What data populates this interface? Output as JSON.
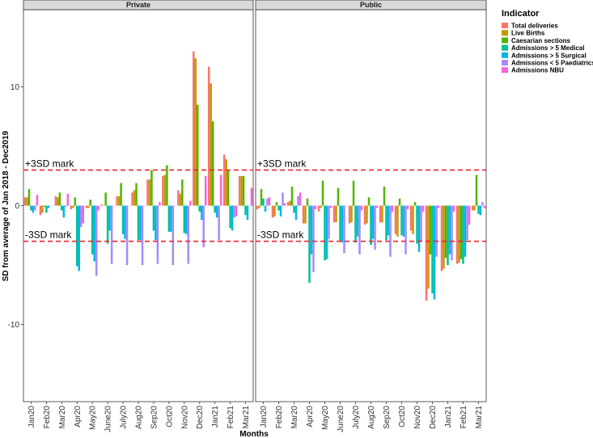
{
  "chart_data": {
    "type": "bar",
    "ylabel": "SD from average of Jan 2018 - Dec2019",
    "xlabel": "Months",
    "ylim": [
      -16.5,
      16.5
    ],
    "yticks": [
      -10,
      0,
      10
    ],
    "x_tick_labels": [
      "Jan20",
      "Feb20",
      "Mar20",
      "Apr20",
      "May20",
      "June20",
      "July20",
      "Aug20",
      "Sep20",
      "Oct20",
      "Nov20",
      "Dec20",
      "Jan21",
      "Feb21",
      "Mar21"
    ],
    "reference_lines": [
      {
        "label": "+3SD mark",
        "value": 3,
        "color": "#e8262c"
      },
      {
        "label": "-3SD mark",
        "value": -3,
        "color": "#e8262c"
      }
    ],
    "legend": {
      "title": "Indicator",
      "position": "right",
      "entries": [
        {
          "name": "Total deliveries",
          "color": "#F8766D"
        },
        {
          "name": "Live Births",
          "color": "#C49A00"
        },
        {
          "name": "Caesarian sections",
          "color": "#53B400"
        },
        {
          "name": "Admissions > 5 Medical",
          "color": "#00C094"
        },
        {
          "name": "Admissions > 5 Surgical",
          "color": "#00B6EB"
        },
        {
          "name": "Admissions < 5 Paediatrics",
          "color": "#A58AFF"
        },
        {
          "name": "Admissions NBU",
          "color": "#FB61D7"
        }
      ]
    },
    "categories": [
      "Jan20",
      "Feb20",
      "Mar20",
      "Apr20",
      "May20",
      "Jun20",
      "Jul20",
      "Aug20",
      "Sep20",
      "Oct20",
      "Nov20",
      "Dec20",
      "Jan21",
      "Feb21",
      "Mar21"
    ],
    "facets": [
      {
        "strip": "Private",
        "series": [
          {
            "name": "Total deliveries",
            "values": [
              0.7,
              -0.8,
              0.8,
              -0.3,
              -0.2,
              0.1,
              0.8,
              1.1,
              2.2,
              2.5,
              1.3,
              13.0,
              11.7,
              4.3,
              2.5
            ]
          },
          {
            "name": "Live Births",
            "values": [
              0.7,
              -0.6,
              0.7,
              -0.2,
              -0.2,
              0.0,
              0.8,
              1.3,
              2.2,
              2.6,
              1.0,
              12.4,
              10.3,
              3.9,
              2.5
            ]
          },
          {
            "name": "Caesarian sections",
            "values": [
              1.4,
              -0.1,
              1.1,
              0.7,
              0.5,
              1.1,
              1.9,
              1.9,
              3.0,
              3.4,
              2.2,
              8.5,
              7.1,
              3.0,
              2.5
            ]
          },
          {
            "name": "Admissions > 5 Medical",
            "values": [
              -0.4,
              -0.6,
              -0.4,
              -5.1,
              -4.1,
              -3.2,
              -2.4,
              -2.9,
              -2.1,
              -2.2,
              -2.3,
              -0.5,
              -0.6,
              -1.9,
              -0.8
            ]
          },
          {
            "name": "Admissions > 5 Surgical",
            "values": [
              -0.6,
              -0.2,
              -1.0,
              -5.5,
              -4.7,
              -2.1,
              -2.8,
              -2.9,
              -2.9,
              -2.2,
              -2.4,
              -1.2,
              -1.0,
              -2.1,
              -1.2
            ]
          },
          {
            "name": "Admissions < 5 Paediatrics",
            "values": [
              -0.4,
              0.0,
              -0.1,
              -1.8,
              -5.9,
              -4.9,
              -5.0,
              -5.0,
              -4.9,
              -5.0,
              -4.9,
              -3.5,
              -2.9,
              -1.0,
              0.0
            ]
          },
          {
            "name": "Admissions NBU",
            "values": [
              0.9,
              0.0,
              1.0,
              -1.5,
              -0.4,
              0.0,
              0.0,
              0.0,
              0.3,
              0.0,
              0.4,
              2.5,
              2.6,
              -0.9,
              1.5
            ]
          }
        ]
      },
      {
        "strip": "Public",
        "series": [
          {
            "name": "Total deliveries",
            "values": [
              -0.3,
              -1.0,
              0.3,
              -1.5,
              -0.5,
              -1.4,
              -1.5,
              -1.6,
              -1.4,
              -2.4,
              -2.1,
              -8.0,
              -5.5,
              -4.9,
              -0.4
            ]
          },
          {
            "name": "Live Births",
            "values": [
              -0.2,
              -0.9,
              0.4,
              -1.5,
              -0.2,
              -1.4,
              -1.4,
              -1.5,
              -1.4,
              -2.6,
              -2.4,
              -7.0,
              -5.3,
              -4.8,
              -0.4
            ]
          },
          {
            "name": "Caesarian sections",
            "values": [
              1.4,
              0.3,
              1.6,
              0.6,
              2.1,
              1.5,
              2.1,
              0.7,
              1.6,
              0.6,
              0.3,
              -4.1,
              -4.4,
              -4.5,
              2.6
            ]
          },
          {
            "name": "Admissions > 5 Medical",
            "values": [
              0.6,
              -0.4,
              -0.6,
              -6.5,
              -4.6,
              -3.0,
              -3.1,
              -3.3,
              -2.9,
              -2.5,
              -3.2,
              -7.4,
              -5.0,
              -4.9,
              -0.7
            ]
          },
          {
            "name": "Admissions > 5 Surgical",
            "values": [
              -0.5,
              -0.9,
              -1.2,
              -4.1,
              -4.5,
              -3.1,
              -2.6,
              -2.8,
              -2.5,
              -2.6,
              -3.9,
              -7.9,
              -4.1,
              -4.3,
              -0.8
            ]
          },
          {
            "name": "Admissions < 5 Paediatrics",
            "values": [
              0.6,
              1.1,
              0.8,
              -5.6,
              -2.8,
              -4.0,
              -4.1,
              -3.7,
              -4.3,
              -4.1,
              -3.0,
              -4.3,
              -4.6,
              -2.9,
              0.3
            ]
          },
          {
            "name": "Admissions NBU",
            "values": [
              0.7,
              0.2,
              1.1,
              -0.3,
              -0.2,
              0.0,
              -0.4,
              -0.2,
              -0.5,
              -0.3,
              -0.5,
              -0.2,
              -0.5,
              -1.6,
              -0.2
            ]
          }
        ]
      }
    ]
  }
}
